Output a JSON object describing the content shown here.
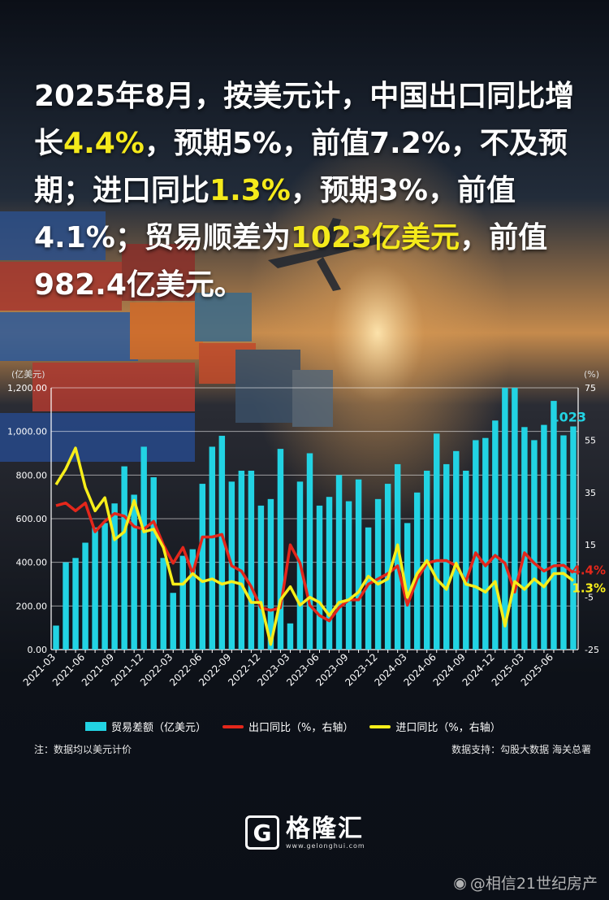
{
  "headline": {
    "p1": "2025年8月，按美元计，中国出口同比增长",
    "p2": "4.4%",
    "p3": "，预期5%，前值7.2%，不及预期；进口同比",
    "p4": "1.3%",
    "p5": "，预期3%，前值4.1%；贸易顺差为",
    "p6": "1023亿美元",
    "p7": "，前值982.4亿美元。"
  },
  "legend": {
    "trade": "贸易差额（亿美元）",
    "export": "出口同比（%，右轴）",
    "import": "进口同比（%，右轴）"
  },
  "note": "注：数据均以美元计价",
  "source": "数据支持：勾股大数据 海关总署",
  "logo": {
    "name": "格隆汇",
    "url": "www.gelonghui.com"
  },
  "watermark": "@相信21世纪房产",
  "colors": {
    "bars": "#22d3e3",
    "export": "#e4271b",
    "import": "#f7ee1a",
    "highlight": "#f5ea1b"
  },
  "chart_data": {
    "type": "bar",
    "left_unit": "(亿美元)",
    "right_unit": "(%)",
    "ylim_left": [
      0,
      1200
    ],
    "ylim_right": [
      -25,
      75
    ],
    "left_ticks": [
      "0.00",
      "200.00",
      "400.00",
      "600.00",
      "800.00",
      "1,000.00",
      "1,200.00"
    ],
    "right_ticks": [
      "-25",
      "-5",
      "15",
      "35",
      "55",
      "75"
    ],
    "x_tick_labels": [
      "2021-03",
      "2021-06",
      "2021-09",
      "2021-12",
      "2022-03",
      "2022-06",
      "2022-09",
      "2022-12",
      "2023-03",
      "2023-06",
      "2023-09",
      "2023-12",
      "2024-03",
      "2024-06",
      "2024-09",
      "2024-12",
      "2025-03",
      "2025-06"
    ],
    "x": [
      "2021-03",
      "2021-04",
      "2021-05",
      "2021-06",
      "2021-07",
      "2021-08",
      "2021-09",
      "2021-10",
      "2021-11",
      "2021-12",
      "2022-01",
      "2022-02",
      "2022-03",
      "2022-04",
      "2022-05",
      "2022-06",
      "2022-07",
      "2022-08",
      "2022-09",
      "2022-10",
      "2022-11",
      "2022-12",
      "2023-01",
      "2023-02",
      "2023-03",
      "2023-04",
      "2023-05",
      "2023-06",
      "2023-07",
      "2023-08",
      "2023-09",
      "2023-10",
      "2023-11",
      "2023-12",
      "2024-01",
      "2024-02",
      "2024-03",
      "2024-04",
      "2024-05",
      "2024-06",
      "2024-07",
      "2024-08",
      "2024-09",
      "2024-10",
      "2024-11",
      "2024-12",
      "2025-01",
      "2025-02",
      "2025-03",
      "2025-04",
      "2025-05",
      "2025-06",
      "2025-07",
      "2025-08"
    ],
    "series": [
      {
        "name": "贸易差额（亿美元）",
        "axis": "left",
        "type": "bar",
        "values": [
          110,
          400,
          420,
          490,
          560,
          580,
          670,
          840,
          710,
          930,
          790,
          420,
          260,
          430,
          460,
          760,
          930,
          980,
          770,
          820,
          820,
          660,
          690,
          920,
          120,
          770,
          900,
          660,
          700,
          800,
          680,
          780,
          560,
          690,
          760,
          850,
          580,
          720,
          820,
          990,
          850,
          910,
          820,
          960,
          970,
          1050,
          1200,
          1200,
          1020,
          960,
          1030,
          1140,
          982,
          1023
        ]
      },
      {
        "name": "出口同比（%，右轴）",
        "axis": "right",
        "type": "line",
        "values": [
          30,
          31,
          28,
          31,
          20,
          24,
          27,
          26,
          22,
          21,
          24,
          15,
          8,
          14,
          4,
          18,
          18,
          19,
          7,
          5,
          -1,
          -9,
          -10,
          -9,
          15,
          8,
          -8,
          -12,
          -14,
          -9,
          -6,
          -6,
          0,
          2,
          4,
          7,
          -8,
          2,
          8,
          9,
          9,
          7,
          1,
          12,
          7,
          11,
          8,
          -3,
          12,
          8,
          5,
          7,
          7.2,
          4.4
        ]
      },
      {
        "name": "进口同比（%，右轴）",
        "axis": "right",
        "type": "line",
        "values": [
          38,
          44,
          52,
          37,
          28,
          33,
          17,
          20,
          32,
          20,
          21,
          14,
          0,
          0,
          4,
          1,
          2,
          0,
          1,
          0,
          -7,
          -7,
          -23,
          -6,
          -1,
          -8,
          -5,
          -7,
          -12,
          -7,
          -6,
          -3,
          3,
          0,
          2,
          15,
          -5,
          4,
          9,
          2,
          -2,
          8,
          0,
          -1,
          -3,
          1,
          -16,
          1,
          -2,
          2,
          -1,
          4,
          4.1,
          1.3
        ]
      }
    ],
    "callouts": {
      "trade_last": "1023",
      "export_last": "4.4%",
      "import_last": "1.3%"
    }
  }
}
